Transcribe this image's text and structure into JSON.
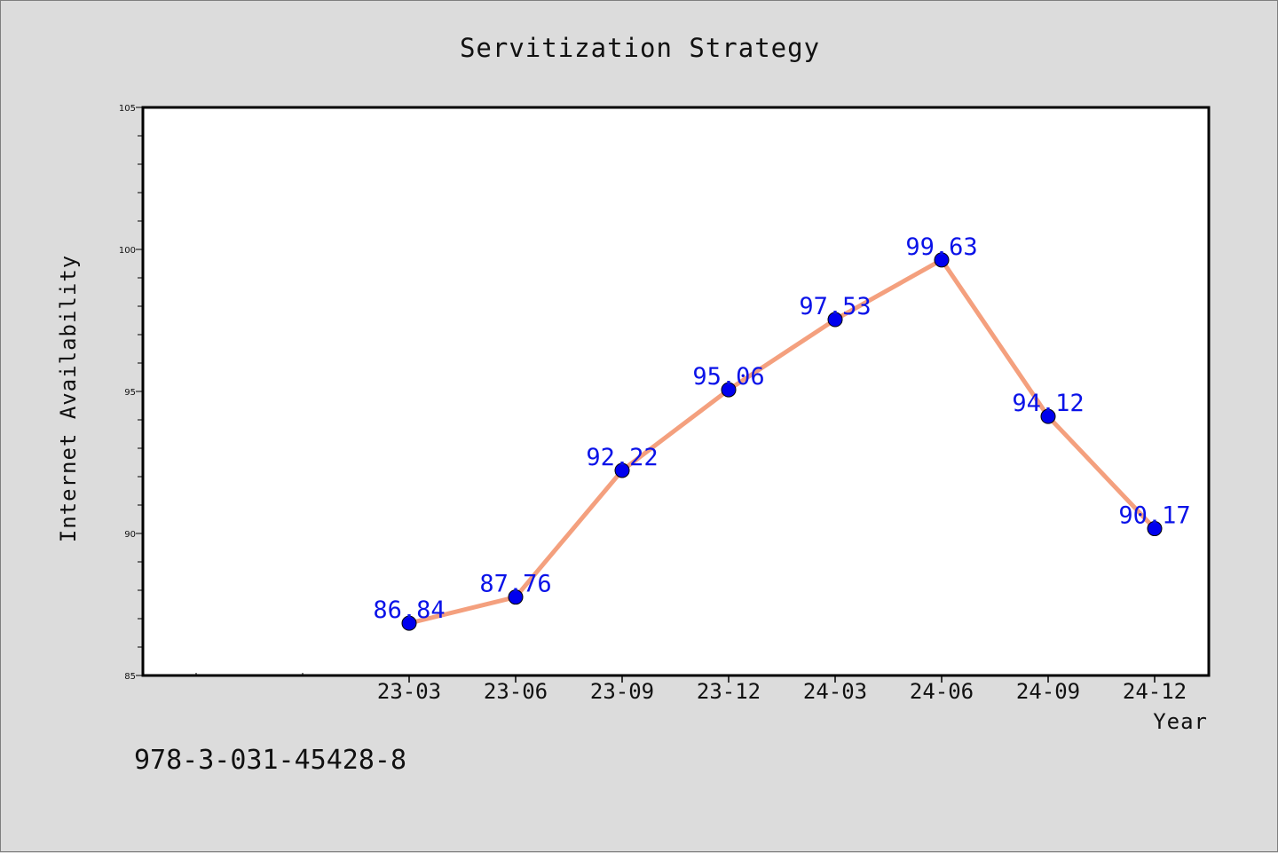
{
  "footer": {
    "code": "978-3-031-45428-8"
  },
  "colors": {
    "background": "#dcdcdc",
    "plot_background": "#ffffff",
    "line": "#f4a07e",
    "marker": "#0000ee",
    "data_label": "#0a12e8"
  },
  "chart_data": {
    "type": "line",
    "title": "Servitization Strategy",
    "xlabel": "Year",
    "ylabel": "Internet Availability",
    "categories": [
      "23-03",
      "23-06",
      "23-09",
      "23-12",
      "24-03",
      "24-06",
      "24-09",
      "24-12"
    ],
    "series": [
      {
        "values": [
          86.84,
          87.76,
          92.22,
          95.06,
          97.53,
          99.63,
          94.12,
          90.17
        ]
      }
    ],
    "data_labels": [
      "86.84",
      "87.76",
      "92.22",
      "95.06",
      "97.53",
      "99.63",
      "94.12",
      "90.17"
    ],
    "ylim": [
      85,
      105
    ],
    "yticks": [
      85,
      90,
      95,
      100,
      105
    ],
    "ytick_labels": [
      "85",
      "90",
      "95",
      "100",
      "105"
    ],
    "x_leading_empty_slots": 2,
    "grid": false,
    "legend": "none"
  }
}
